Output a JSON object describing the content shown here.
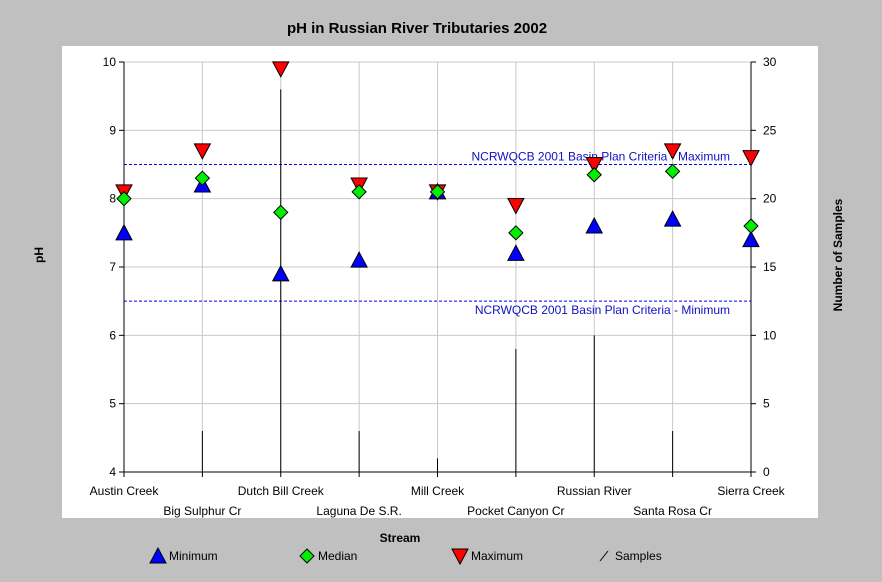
{
  "chart_data": {
    "type": "scatter",
    "title": "pH in Russian River Tributaries 2002",
    "xlabel": "Stream",
    "ylabel": "pH",
    "y2label": "Number of Samples",
    "ylim": [
      4,
      10
    ],
    "y2lim": [
      0,
      30
    ],
    "yticks": [
      "4",
      "5",
      "6",
      "7",
      "8",
      "9",
      "10"
    ],
    "y2ticks": [
      "0",
      "5",
      "10",
      "15",
      "20",
      "25",
      "30"
    ],
    "grid": true,
    "legend_position": "bottom",
    "categories": [
      "Austin Creek",
      "Big Sulphur Cr",
      "Dutch Bill Creek",
      "Laguna De S.R.",
      "Mill Creek",
      "Pocket Canyon Cr",
      "Russian River",
      "Santa Rosa Cr",
      "Sierra Creek"
    ],
    "series": [
      {
        "name": "Minimum",
        "axis": "left",
        "marker": "triangle-up",
        "color": "#0000ff",
        "values": [
          7.5,
          8.2,
          6.9,
          7.1,
          8.1,
          7.2,
          7.6,
          7.7,
          7.4
        ]
      },
      {
        "name": "Median",
        "axis": "left",
        "marker": "diamond",
        "color": "#00ee00",
        "values": [
          8.0,
          8.3,
          7.8,
          8.1,
          8.1,
          7.5,
          8.35,
          8.4,
          7.6
        ]
      },
      {
        "name": "Maximum",
        "axis": "left",
        "marker": "triangle-down",
        "color": "#ff0000",
        "values": [
          8.1,
          8.7,
          9.9,
          8.2,
          8.1,
          7.9,
          8.5,
          8.7,
          8.6
        ]
      },
      {
        "name": "Samples",
        "axis": "right",
        "marker": "line",
        "color": "#000000",
        "values": [
          0,
          3,
          28,
          3,
          1,
          9,
          10,
          3,
          0
        ]
      }
    ],
    "reference_lines": [
      {
        "label": "NCRWQCB 2001 Basin Plan Criteria - Maximum",
        "value": 8.5,
        "color": "#0000ff"
      },
      {
        "label": "NCRWQCB 2001 Basin Plan Criteria - Minimum",
        "value": 6.5,
        "color": "#0000ff"
      }
    ]
  }
}
